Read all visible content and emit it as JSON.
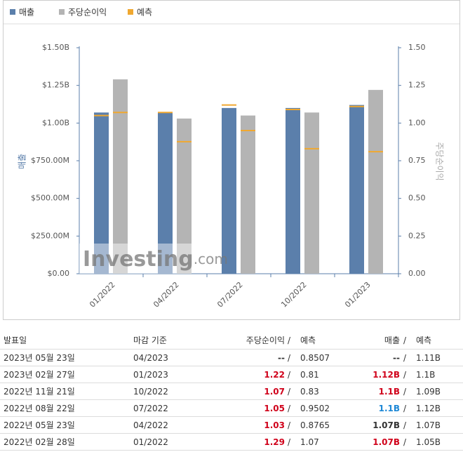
{
  "chart_data": {
    "type": "bar",
    "categories": [
      "01/2022",
      "04/2022",
      "07/2022",
      "10/2022",
      "01/2023"
    ],
    "series": [
      {
        "name": "매출",
        "color": "#5b7fab",
        "axis": "y",
        "values": [
          1070000000,
          1070000000,
          1100000000,
          1100000000,
          1120000000
        ],
        "forecast": [
          1050000000,
          1070000000,
          1120000000,
          1090000000,
          1110000000
        ]
      },
      {
        "name": "주당순이익",
        "color": "#b4b4b4",
        "axis": "y2",
        "values": [
          1.29,
          1.03,
          1.05,
          1.07,
          1.22
        ],
        "forecast": [
          1.07,
          0.8765,
          0.9502,
          0.83,
          0.81
        ]
      }
    ],
    "forecast_series": {
      "name": "예측",
      "color": "#f0a830"
    },
    "ylabel": "매출",
    "y2label": "주당순이익",
    "ylim": [
      0,
      1500000000
    ],
    "yticks": [
      {
        "value": 0,
        "label": "$0.00"
      },
      {
        "value": 250000000,
        "label": "$250.00M"
      },
      {
        "value": 500000000,
        "label": "$500.00M"
      },
      {
        "value": 750000000,
        "label": "$750.00M"
      },
      {
        "value": 1000000000,
        "label": "$1.00B"
      },
      {
        "value": 1250000000,
        "label": "$1.25B"
      },
      {
        "value": 1500000000,
        "label": "$1.50B"
      }
    ],
    "y2lim": [
      0,
      1.5
    ],
    "y2ticks": [
      {
        "value": 0,
        "label": "0.00"
      },
      0.25,
      {
        "value": 0.5,
        "label": "0.50"
      },
      0.75,
      {
        "value": 1,
        "label": "1.00"
      },
      1.25,
      {
        "value": 1.5,
        "label": "1.50"
      }
    ],
    "watermark": "Investing",
    "watermark_suffix": ".com"
  },
  "table": {
    "headers": {
      "date": "발표일",
      "period": "마감 기준",
      "eps": "주당순이익",
      "eps_forecast": "예측",
      "revenue": "매출",
      "revenue_forecast": "예측"
    },
    "rows": [
      {
        "date": "2023년 05월 23일",
        "period": "04/2023",
        "eps": "--",
        "eps_color": "#333333",
        "eps_forecast": "0.8507",
        "revenue": "--",
        "revenue_color": "#333333",
        "revenue_forecast": "1.11B"
      },
      {
        "date": "2023년 02월 27일",
        "period": "01/2023",
        "eps": "1.22",
        "eps_color": "#d0021b",
        "eps_forecast": "0.81",
        "revenue": "1.12B",
        "revenue_color": "#d0021b",
        "revenue_forecast": "1.1B"
      },
      {
        "date": "2022년 11월 21일",
        "period": "10/2022",
        "eps": "1.07",
        "eps_color": "#d0021b",
        "eps_forecast": "0.83",
        "revenue": "1.1B",
        "revenue_color": "#d0021b",
        "revenue_forecast": "1.09B"
      },
      {
        "date": "2022년 08월 22일",
        "period": "07/2022",
        "eps": "1.05",
        "eps_color": "#d0021b",
        "eps_forecast": "0.9502",
        "revenue": "1.1B",
        "revenue_color": "#1e88d6",
        "revenue_forecast": "1.12B"
      },
      {
        "date": "2022년 05월 23일",
        "period": "04/2022",
        "eps": "1.03",
        "eps_color": "#d0021b",
        "eps_forecast": "0.8765",
        "revenue": "1.07B",
        "revenue_color": "#333333",
        "revenue_forecast": "1.07B"
      },
      {
        "date": "2022년 02월 28일",
        "period": "01/2022",
        "eps": "1.29",
        "eps_color": "#d0021b",
        "eps_forecast": "1.07",
        "revenue": "1.07B",
        "revenue_color": "#d0021b",
        "revenue_forecast": "1.05B"
      }
    ]
  }
}
